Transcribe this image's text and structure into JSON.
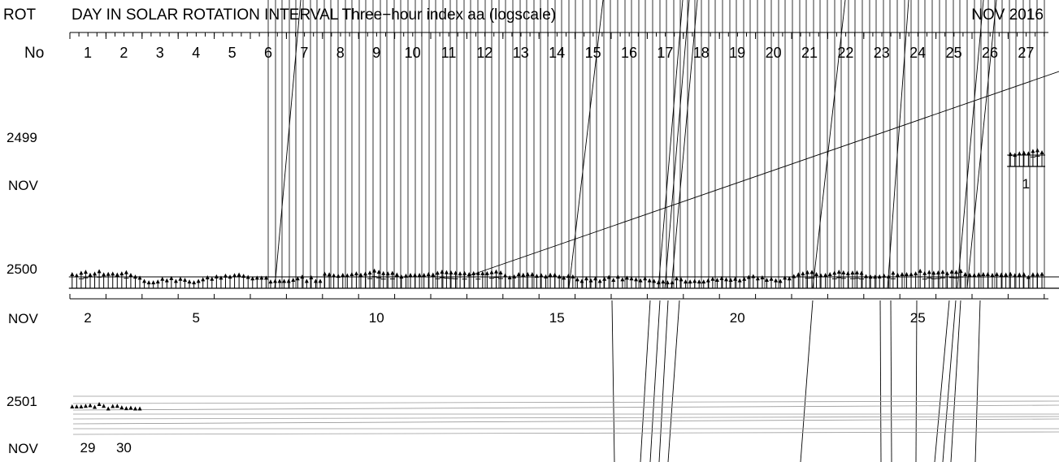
{
  "chart_data": {
    "type": "scatter",
    "title": {
      "rot": "ROT",
      "main": "DAY IN SOLAR ROTATION INTERVAL  Three−hour index aa (logscale)",
      "period": "NOV 2016"
    },
    "header": {
      "no_label": "No",
      "day_numbers": [
        "1",
        "2",
        "3",
        "4",
        "5",
        "6",
        "7",
        "8",
        "9",
        "10",
        "11",
        "12",
        "13",
        "14",
        "15",
        "16",
        "17",
        "18",
        "19",
        "20",
        "21",
        "22",
        "23",
        "24",
        "25",
        "26",
        "27"
      ]
    },
    "rows": [
      {
        "rotation": "2499",
        "month": "NOV",
        "date_labels": [
          {
            "day": 1,
            "text": "1"
          }
        ],
        "series": [
          {
            "day": 1,
            "aa": [
              22,
              19,
              25,
              28,
              25,
              38,
              44,
              30
            ]
          }
        ]
      },
      {
        "rotation": "2500",
        "month": "NOV",
        "date_labels": [
          {
            "day": 2,
            "text": "2"
          },
          {
            "day": 5,
            "text": "5"
          },
          {
            "day": 10,
            "text": "10"
          },
          {
            "day": 15,
            "text": "15"
          },
          {
            "day": 20,
            "text": "20"
          },
          {
            "day": 25,
            "text": "25"
          }
        ],
        "series": [
          {
            "day": 2,
            "aa": [
              30,
              24,
              38,
              45,
              27,
              33,
              51,
              29
            ]
          },
          {
            "day": 3,
            "aa": [
              31,
              33,
              28,
              34,
              42,
              26,
              19,
              16
            ]
          },
          {
            "day": 4,
            "aa": [
              9,
              7,
              7,
              8,
              13,
              10,
              15,
              9
            ]
          },
          {
            "day": 5,
            "aa": [
              13,
              11,
              8,
              7,
              9,
              12,
              17,
              13
            ]
          },
          {
            "day": 6,
            "aa": [
              20,
              16,
              23,
              19,
              25,
              28,
              22,
              18
            ]
          },
          {
            "day": 7,
            "aa": [
              14,
              16,
              16,
              16,
              8,
              9,
              9,
              9
            ]
          },
          {
            "day": 8,
            "aa": [
              9,
              11,
              14,
              19,
              9,
              17,
              9,
              9
            ]
          },
          {
            "day": 9,
            "aa": [
              32,
              29,
              24,
              22,
              26,
              24,
              30,
              34
            ]
          },
          {
            "day": 10,
            "aa": [
              27,
              33,
              39,
              56,
              45,
              36,
              34,
              37
            ]
          },
          {
            "day": 11,
            "aa": [
              28,
              19,
              23,
              26,
              26,
              26,
              26,
              30
            ]
          },
          {
            "day": 12,
            "aa": [
              28,
              38,
              46,
              42,
              40,
              38,
              34,
              36
            ]
          },
          {
            "day": 13,
            "aa": [
              30,
              35,
              36,
              35,
              35,
              42,
              48,
              40
            ]
          },
          {
            "day": 14,
            "aa": [
              24,
              17,
              20,
              30,
              27,
              30,
              30,
              22
            ]
          },
          {
            "day": 15,
            "aa": [
              25,
              20,
              27,
              27,
              20,
              16,
              22,
              20
            ]
          },
          {
            "day": 16,
            "aa": [
              12,
              9,
              14,
              10,
              14,
              9,
              13,
              18
            ]
          },
          {
            "day": 17,
            "aa": [
              11,
              19,
              12,
              16,
              14,
              12,
              10,
              14
            ]
          },
          {
            "day": 18,
            "aa": [
              10,
              9,
              7,
              8,
              7,
              7,
              14,
              12
            ]
          },
          {
            "day": 19,
            "aa": [
              8,
              8,
              9,
              8,
              8,
              10,
              13,
              11
            ]
          },
          {
            "day": 20,
            "aa": [
              15,
              12,
              11,
              13,
              10,
              13,
              18,
              21
            ]
          },
          {
            "day": 21,
            "aa": [
              14,
              17,
              11,
              13,
              10,
              9,
              16,
              14
            ]
          },
          {
            "day": 22,
            "aa": [
              21,
              29,
              34,
              42,
              44,
              30,
              24,
              26
            ]
          },
          {
            "day": 23,
            "aa": [
              30,
              38,
              46,
              41,
              35,
              39,
              41,
              37
            ]
          },
          {
            "day": 24,
            "aa": [
              21,
              19,
              19,
              20,
              23,
              20,
              38,
              27
            ]
          },
          {
            "day": 25,
            "aa": [
              30,
              30,
              30,
              34,
              54,
              36,
              44,
              38
            ]
          },
          {
            "day": 26,
            "aa": [
              40,
              45,
              34,
              47,
              44,
              52,
              30,
              26
            ]
          },
          {
            "day": 27,
            "aa": [
              26,
              29,
              30,
              30,
              26,
              30,
              28,
              28
            ]
          },
          {
            "day": 28,
            "aa": [
              31,
              24,
              28,
              29,
              18,
              29,
              29,
              31
            ]
          }
        ]
      },
      {
        "rotation": "2501",
        "month": "NOV",
        "date_labels": [
          {
            "day": 29,
            "text": "29"
          },
          {
            "day": 30,
            "text": "30"
          }
        ],
        "series": [
          {
            "day": 29,
            "aa": [
              26,
              26,
              26,
              29,
              32,
              24,
              40,
              29
            ]
          },
          {
            "day": 30,
            "aa": [
              18,
              28,
              29,
              22,
              19,
              21,
              18,
              18
            ]
          }
        ]
      }
    ]
  }
}
